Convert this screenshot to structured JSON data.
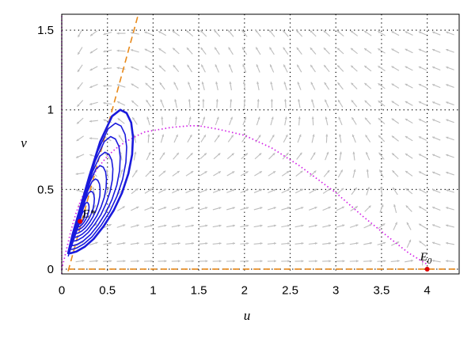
{
  "chart_data": {
    "type": "phase-portrait",
    "title": "",
    "xlabel": "u",
    "ylabel": "v",
    "xlim": [
      0,
      4.35
    ],
    "ylim": [
      -0.03,
      1.6
    ],
    "grid": true,
    "legend": "none",
    "x_ticks": [
      "0",
      "0.5",
      "1",
      "1.5",
      "2",
      "2.5",
      "3",
      "3.5",
      "4"
    ],
    "x_tick_values": [
      0,
      0.5,
      1,
      1.5,
      2,
      2.5,
      3,
      3.5,
      4
    ],
    "y_ticks": [
      "0",
      "0.5",
      "1",
      "1.5"
    ],
    "y_tick_values": [
      0,
      0.5,
      1,
      1.5
    ],
    "colors": {
      "trajectory": "#1a1adc",
      "nullcline_orange": "#e8891a",
      "nullcline_magenta": "#d21ee6",
      "vector_field": "#bdbdbd",
      "equilibrium": "#e00000",
      "grid": "#000000"
    },
    "equilibria": [
      {
        "label": "E*",
        "u": 0.2,
        "v": 0.3
      },
      {
        "label": "E0",
        "label_main": "E",
        "label_sub": "0",
        "u": 4.0,
        "v": 0.0
      }
    ],
    "orange_nullcline_line": {
      "slope": 2.1,
      "intercept": -0.16,
      "u_range": [
        0.07,
        1.1
      ]
    },
    "orange_nullcline_axis": {
      "v": 0.0,
      "u_range": [
        0.07,
        4.35
      ]
    },
    "magenta_nullcline": {
      "u": [
        0.0,
        0.05,
        0.1,
        0.15,
        0.2,
        0.3,
        0.4,
        0.5,
        0.6,
        0.7,
        0.8,
        0.9,
        1.0,
        1.2,
        1.4,
        1.5,
        1.7,
        2.0,
        2.3,
        2.6,
        3.0,
        3.3,
        3.6,
        3.8,
        4.0
      ],
      "v": [
        0.0,
        0.12,
        0.24,
        0.34,
        0.42,
        0.55,
        0.64,
        0.71,
        0.76,
        0.8,
        0.83,
        0.86,
        0.87,
        0.89,
        0.9,
        0.9,
        0.88,
        0.84,
        0.76,
        0.65,
        0.48,
        0.33,
        0.19,
        0.1,
        0.03
      ]
    },
    "outer_orbit": {
      "u": [
        0.07,
        0.12,
        0.2,
        0.3,
        0.42,
        0.55,
        0.64,
        0.71,
        0.76,
        0.78,
        0.77,
        0.73,
        0.66,
        0.57,
        0.46,
        0.35,
        0.25,
        0.16,
        0.1,
        0.07
      ],
      "v": [
        0.1,
        0.22,
        0.38,
        0.58,
        0.8,
        0.96,
        1.0,
        0.98,
        0.92,
        0.83,
        0.72,
        0.6,
        0.48,
        0.37,
        0.27,
        0.19,
        0.14,
        0.11,
        0.1,
        0.1
      ]
    },
    "orbit_scales": [
      1.0,
      0.88,
      0.76,
      0.62,
      0.5,
      0.38,
      0.27,
      0.17,
      0.09
    ],
    "orbit_center": {
      "u": 0.2,
      "v": 0.3
    }
  }
}
